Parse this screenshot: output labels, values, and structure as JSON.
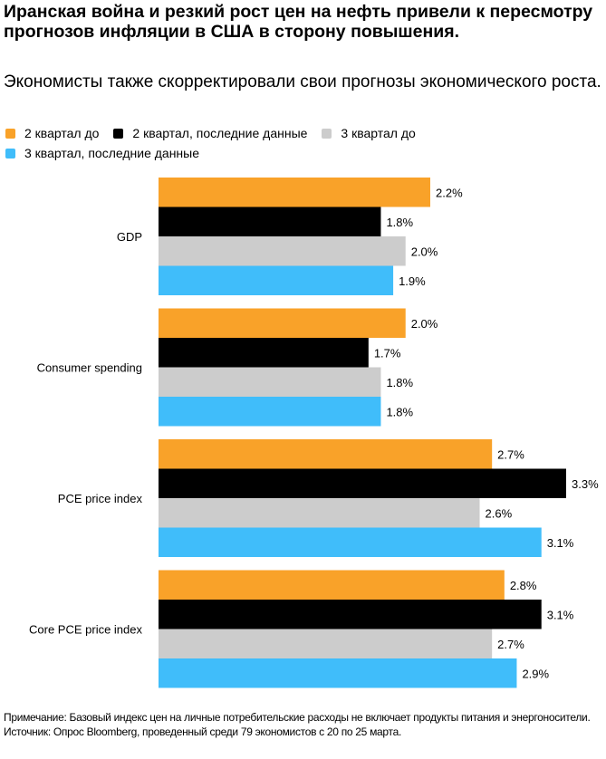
{
  "title": "Иранская война и резкий рост цен на нефть привели к пересмотру прогнозов инфляции в США в сторону повышения.",
  "subtitle": "Экономисты также скорректировали свои прогнозы экономического роста.",
  "colors": {
    "q2_before": "#f9a229",
    "q2_latest": "#000000",
    "q3_before": "#cccccc",
    "q3_latest": "#40bdfa"
  },
  "chart_data": {
    "type": "bar",
    "orientation": "horizontal",
    "categories": [
      "GDP",
      "Consumer spending",
      "PCE price index",
      "Core PCE price index"
    ],
    "series": [
      {
        "name": "2 квартал до",
        "color": "#f9a229",
        "values": [
          2.2,
          2.0,
          2.7,
          2.8
        ],
        "labels": [
          "2.2%",
          "2.0%",
          "2.7%",
          "2.8%"
        ]
      },
      {
        "name": "2 квартал, последние данные",
        "color": "#000000",
        "values": [
          1.8,
          1.7,
          3.3,
          3.1
        ],
        "labels": [
          "1.8%",
          "1.7%",
          "3.3%",
          "3.1%"
        ]
      },
      {
        "name": "3 квартал до",
        "color": "#cccccc",
        "values": [
          2.0,
          1.8,
          2.6,
          2.7
        ],
        "labels": [
          "2.0%",
          "1.8%",
          "2.6%",
          "2.7%"
        ]
      },
      {
        "name": "3 квартал, последние данные",
        "color": "#40bdfa",
        "values": [
          1.9,
          1.8,
          3.1,
          2.9
        ],
        "labels": [
          "1.9%",
          "1.8%",
          "3.1%",
          "2.9%"
        ]
      }
    ],
    "xlim": [
      0,
      3.3
    ],
    "grid": false,
    "legend": "top-left"
  },
  "footer": {
    "note": "Примечание: Базовый индекс цен на личные потребительские расходы не включает продукты питания и энергоносители.",
    "source": "Источник: Опрос Bloomberg, проведенный среди 79 экономистов с 20 по 25 марта."
  }
}
